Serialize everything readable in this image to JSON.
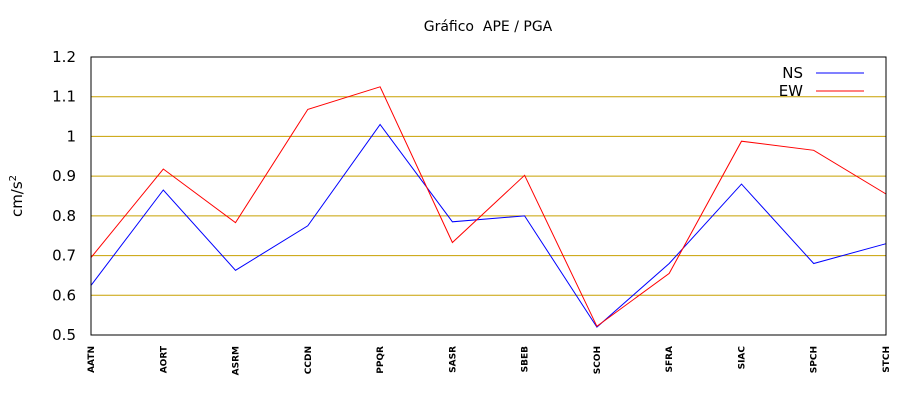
{
  "chart_data": {
    "type": "line",
    "title": "Gráfico  APE / PGA",
    "ylabel": "cm/s",
    "ylabel_sup": "2",
    "xlabel": "",
    "ylim": [
      0.5,
      1.2
    ],
    "yticks": [
      "0.5",
      "0.6",
      "0.7",
      "0.8",
      "0.9",
      "1",
      "1.1",
      "1.2"
    ],
    "grid": "horizontal",
    "grid_color": "#c8a000",
    "legend_position": "top-right",
    "categories": [
      "AATN",
      "AORT",
      "ASRM",
      "CCDN",
      "PPQR",
      "SASR",
      "SBEB",
      "SCOH",
      "SFRA",
      "SIAC",
      "SPCH",
      "STCH"
    ],
    "series": [
      {
        "name": "NS",
        "color": "#0000ff",
        "values": [
          0.625,
          0.865,
          0.663,
          0.775,
          1.03,
          0.785,
          0.8,
          0.52,
          0.68,
          0.88,
          0.68,
          0.73
        ]
      },
      {
        "name": "EW",
        "color": "#ff0000",
        "values": [
          0.695,
          0.918,
          0.783,
          1.068,
          1.125,
          0.733,
          0.902,
          0.522,
          0.655,
          0.988,
          0.965,
          0.855
        ]
      }
    ]
  }
}
